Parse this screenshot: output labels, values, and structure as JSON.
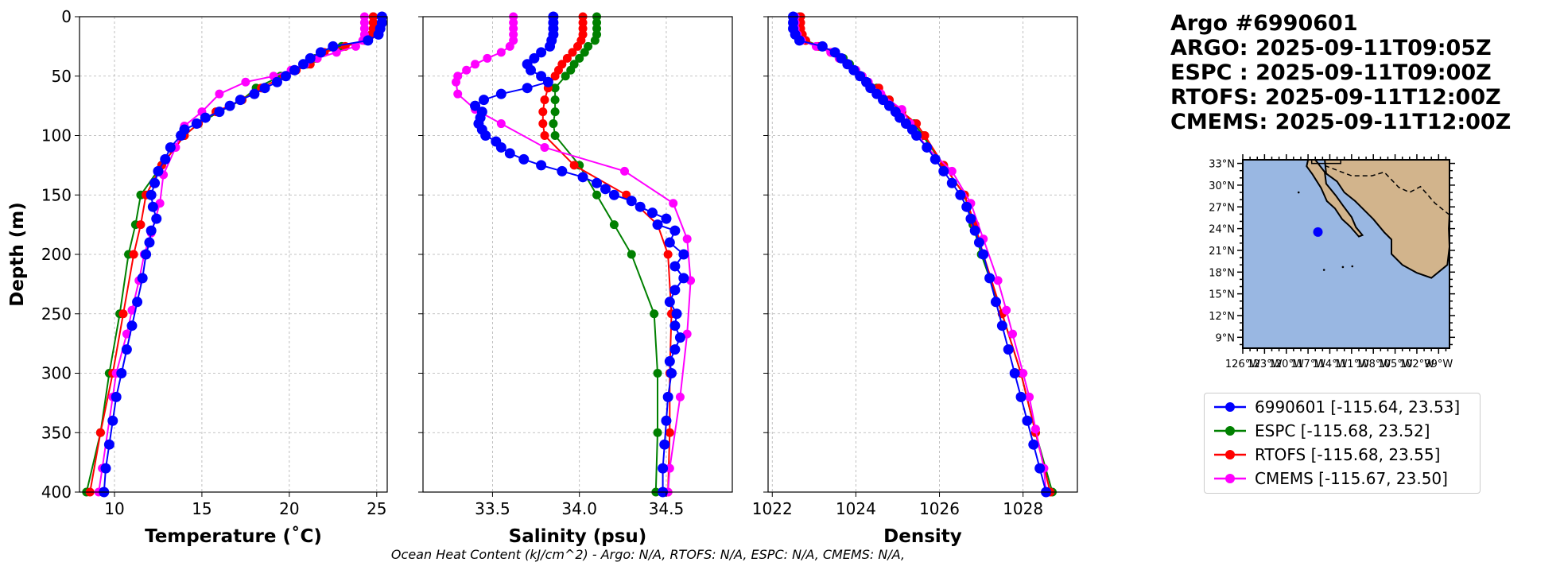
{
  "header": {
    "lines": [
      "Argo #6990601",
      "ARGO: 2025-09-11T09:05Z",
      "ESPC : 2025-09-11T09:00Z",
      "RTOFS: 2025-09-11T12:00Z",
      "CMEMS: 2025-09-11T12:00Z"
    ]
  },
  "footer": "Ocean Heat Content (kJ/cm^2) - Argo: N/A,  RTOFS: N/A,  ESPC: N/A,  CMEMS: N/A,",
  "colors": {
    "argo": "#0000ff",
    "espc": "#008000",
    "rtofs": "#ff0000",
    "cmems": "#ff00ff",
    "ocean": "#99b7e2",
    "land": "#d2b48c"
  },
  "legend": [
    {
      "label": "6990601 [-115.64, 23.53]",
      "color": "#0000ff"
    },
    {
      "label": "ESPC [-115.68, 23.52]",
      "color": "#008000"
    },
    {
      "label": "RTOFS [-115.68, 23.55]",
      "color": "#ff0000"
    },
    {
      "label": "CMEMS [-115.67, 23.50]",
      "color": "#ff00ff"
    }
  ],
  "map": {
    "lat_labels": [
      "33°N",
      "30°N",
      "27°N",
      "24°N",
      "21°N",
      "18°N",
      "15°N",
      "12°N",
      "9°N"
    ],
    "lon_labels": [
      "126°W",
      "123°W",
      "120°W",
      "117°W",
      "114°W",
      "111°W",
      "108°W",
      "105°W",
      "102°W",
      "99°W"
    ],
    "float_lon": -115.64,
    "float_lat": 23.53,
    "lon_range": [
      -126,
      -97.5
    ],
    "lat_range": [
      7.5,
      33.5
    ]
  },
  "chart_data": [
    {
      "type": "line",
      "xlabel": "Temperature (˚C)",
      "ylabel": "Depth (m)",
      "xlim": [
        8,
        25.6
      ],
      "ylim": [
        400,
        0
      ],
      "xticks": [
        10,
        15,
        20,
        25
      ],
      "yticks": [
        0,
        50,
        100,
        150,
        200,
        250,
        300,
        350,
        400
      ],
      "series": [
        {
          "name": "6990601",
          "depth": [
            0,
            5,
            10,
            15,
            20,
            25,
            30,
            35,
            40,
            45,
            50,
            55,
            60,
            65,
            70,
            75,
            80,
            85,
            90,
            95,
            100,
            110,
            120,
            130,
            140,
            150,
            160,
            170,
            180,
            190,
            200,
            220,
            240,
            260,
            280,
            300,
            320,
            340,
            360,
            380,
            400
          ],
          "values": [
            25.3,
            25.3,
            25.2,
            25.1,
            24.5,
            22.5,
            21.8,
            21.2,
            20.8,
            20.3,
            19.8,
            19.3,
            18.6,
            18.0,
            17.2,
            16.6,
            16.0,
            15.2,
            14.7,
            14.0,
            13.8,
            13.2,
            12.9,
            12.5,
            12.3,
            12.1,
            12.2,
            12.4,
            12.1,
            12.0,
            11.8,
            11.6,
            11.3,
            11.0,
            10.7,
            10.4,
            10.1,
            9.9,
            9.7,
            9.5,
            9.4
          ]
        },
        {
          "name": "ESPC",
          "depth": [
            0,
            5,
            10,
            15,
            20,
            25,
            30,
            35,
            40,
            50,
            60,
            70,
            80,
            90,
            100,
            125,
            150,
            175,
            200,
            250,
            300,
            350,
            400
          ],
          "values": [
            24.8,
            24.8,
            24.8,
            24.7,
            24.4,
            23.0,
            21.9,
            21.5,
            21.0,
            19.5,
            18.1,
            17.3,
            16.0,
            14.8,
            14.0,
            12.7,
            11.5,
            11.2,
            10.8,
            10.3,
            9.7,
            9.2,
            8.4
          ]
        },
        {
          "name": "RTOFS",
          "depth": [
            0,
            5,
            10,
            15,
            20,
            25,
            30,
            35,
            40,
            45,
            50,
            60,
            70,
            80,
            90,
            100,
            125,
            150,
            175,
            200,
            250,
            300,
            350,
            400
          ],
          "values": [
            24.8,
            24.8,
            24.8,
            24.7,
            24.3,
            23.2,
            22.0,
            21.6,
            21.2,
            20.4,
            19.7,
            18.4,
            17.3,
            15.8,
            14.8,
            14.0,
            12.7,
            11.8,
            11.5,
            11.1,
            10.5,
            9.9,
            9.2,
            8.6
          ]
        },
        {
          "name": "CMEMS",
          "depth": [
            0,
            5,
            10,
            15,
            20,
            25,
            30,
            35,
            40,
            45,
            50,
            55,
            65,
            80,
            92,
            110,
            133,
            157,
            182,
            200,
            222,
            247,
            267,
            300,
            320,
            380,
            400
          ],
          "values": [
            24.3,
            24.3,
            24.3,
            24.3,
            24.2,
            23.8,
            22.7,
            21.6,
            20.9,
            20.1,
            19.1,
            17.5,
            16.0,
            15.0,
            14.0,
            13.5,
            12.8,
            12.6,
            12.1,
            11.7,
            11.4,
            11.0,
            10.7,
            10.1,
            9.9,
            9.3,
            9.1
          ]
        }
      ]
    },
    {
      "type": "line",
      "xlabel": "Salinity (psu)",
      "ylabel": "",
      "xlim": [
        33.1,
        34.88
      ],
      "ylim": [
        400,
        0
      ],
      "xticks": [
        33.5,
        34.0,
        34.5
      ],
      "series": [
        {
          "name": "6990601",
          "depth": [
            0,
            5,
            10,
            15,
            20,
            25,
            30,
            35,
            40,
            45,
            50,
            55,
            60,
            65,
            70,
            75,
            80,
            85,
            90,
            95,
            100,
            105,
            110,
            115,
            120,
            125,
            130,
            135,
            140,
            145,
            150,
            155,
            160,
            165,
            170,
            175,
            180,
            190,
            200,
            210,
            220,
            230,
            240,
            250,
            260,
            270,
            280,
            290,
            300,
            320,
            340,
            360,
            380,
            400
          ],
          "values": [
            33.85,
            33.85,
            33.85,
            33.85,
            33.84,
            33.83,
            33.78,
            33.74,
            33.7,
            33.72,
            33.78,
            33.82,
            33.7,
            33.55,
            33.45,
            33.4,
            33.44,
            33.43,
            33.42,
            33.44,
            33.46,
            33.52,
            33.55,
            33.6,
            33.68,
            33.78,
            33.9,
            34.02,
            34.1,
            34.15,
            34.2,
            34.3,
            34.35,
            34.42,
            34.5,
            34.45,
            34.55,
            34.52,
            34.6,
            34.55,
            34.6,
            34.55,
            34.52,
            34.56,
            34.55,
            34.58,
            34.55,
            34.52,
            34.53,
            34.51,
            34.5,
            34.49,
            34.48,
            34.48
          ]
        },
        {
          "name": "ESPC",
          "depth": [
            0,
            5,
            10,
            15,
            20,
            25,
            30,
            35,
            40,
            45,
            50,
            60,
            70,
            80,
            90,
            100,
            125,
            150,
            175,
            200,
            250,
            300,
            350,
            400
          ],
          "values": [
            34.1,
            34.1,
            34.1,
            34.1,
            34.09,
            34.05,
            34.03,
            34.0,
            33.97,
            33.95,
            33.92,
            33.86,
            33.86,
            33.86,
            33.85,
            33.86,
            34.0,
            34.1,
            34.2,
            34.3,
            34.43,
            34.45,
            34.45,
            34.44
          ]
        },
        {
          "name": "RTOFS",
          "depth": [
            0,
            5,
            10,
            15,
            20,
            25,
            30,
            35,
            40,
            45,
            50,
            60,
            70,
            80,
            90,
            100,
            125,
            150,
            175,
            200,
            250,
            300,
            350,
            400
          ],
          "values": [
            34.02,
            34.02,
            34.02,
            34.02,
            34.01,
            33.99,
            33.96,
            33.93,
            33.9,
            33.88,
            33.86,
            33.82,
            33.8,
            33.79,
            33.79,
            33.8,
            33.97,
            34.27,
            34.45,
            34.51,
            34.53,
            34.52,
            34.52,
            34.51
          ]
        },
        {
          "name": "CMEMS",
          "depth": [
            0,
            5,
            10,
            15,
            20,
            25,
            30,
            35,
            40,
            45,
            50,
            55,
            65,
            78,
            90,
            110,
            130,
            157,
            187,
            222,
            267,
            320,
            380,
            400
          ],
          "values": [
            33.62,
            33.62,
            33.62,
            33.62,
            33.62,
            33.6,
            33.55,
            33.47,
            33.4,
            33.35,
            33.3,
            33.29,
            33.3,
            33.4,
            33.55,
            33.8,
            34.26,
            34.54,
            34.62,
            34.64,
            34.62,
            34.58,
            34.52,
            34.51
          ]
        }
      ]
    },
    {
      "type": "line",
      "xlabel": "Density",
      "ylabel": "",
      "xlim": [
        1021.9,
        1029.3
      ],
      "ylim": [
        400,
        0
      ],
      "xticks": [
        1022,
        1024,
        1026,
        1028
      ],
      "series": [
        {
          "name": "6990601",
          "depth": [
            0,
            5,
            10,
            15,
            20,
            25,
            30,
            35,
            40,
            45,
            50,
            55,
            60,
            65,
            70,
            75,
            80,
            85,
            90,
            95,
            100,
            110,
            120,
            130,
            140,
            150,
            160,
            170,
            180,
            190,
            200,
            220,
            240,
            260,
            280,
            300,
            320,
            340,
            360,
            380,
            400
          ],
          "values": [
            1022.5,
            1022.5,
            1022.5,
            1022.55,
            1022.65,
            1023.2,
            1023.5,
            1023.65,
            1023.8,
            1023.95,
            1024.1,
            1024.25,
            1024.35,
            1024.5,
            1024.65,
            1024.8,
            1024.95,
            1025.05,
            1025.2,
            1025.35,
            1025.45,
            1025.7,
            1025.9,
            1026.1,
            1026.3,
            1026.5,
            1026.65,
            1026.75,
            1026.85,
            1026.95,
            1027.05,
            1027.2,
            1027.35,
            1027.5,
            1027.65,
            1027.8,
            1027.95,
            1028.1,
            1028.25,
            1028.4,
            1028.55
          ]
        },
        {
          "name": "ESPC",
          "depth": [
            0,
            5,
            10,
            15,
            20,
            25,
            30,
            35,
            40,
            45,
            50,
            60,
            70,
            80,
            90,
            100,
            125,
            150,
            175,
            200,
            250,
            300,
            350,
            400
          ],
          "values": [
            1022.65,
            1022.65,
            1022.65,
            1022.7,
            1022.8,
            1023.15,
            1023.5,
            1023.7,
            1023.85,
            1024.0,
            1024.15,
            1024.5,
            1024.8,
            1025.1,
            1025.4,
            1025.6,
            1026.1,
            1026.6,
            1026.8,
            1027.0,
            1027.5,
            1027.95,
            1028.3,
            1028.7
          ]
        },
        {
          "name": "RTOFS",
          "depth": [
            0,
            5,
            10,
            15,
            20,
            25,
            30,
            35,
            40,
            45,
            50,
            60,
            70,
            80,
            90,
            100,
            125,
            150,
            175,
            200,
            250,
            300,
            350,
            400
          ],
          "values": [
            1022.68,
            1022.68,
            1022.68,
            1022.72,
            1022.8,
            1023.1,
            1023.4,
            1023.6,
            1023.8,
            1023.95,
            1024.1,
            1024.55,
            1024.8,
            1025.1,
            1025.45,
            1025.65,
            1026.1,
            1026.6,
            1026.85,
            1027.05,
            1027.5,
            1027.95,
            1028.3,
            1028.65
          ]
        },
        {
          "name": "CMEMS",
          "depth": [
            0,
            5,
            10,
            15,
            20,
            25,
            30,
            35,
            40,
            45,
            50,
            55,
            65,
            78,
            90,
            110,
            130,
            157,
            187,
            222,
            247,
            267,
            300,
            320,
            347,
            380,
            400
          ],
          "values": [
            1022.55,
            1022.55,
            1022.55,
            1022.6,
            1022.7,
            1023.05,
            1023.4,
            1023.6,
            1023.8,
            1024.0,
            1024.15,
            1024.3,
            1024.6,
            1025.1,
            1025.3,
            1025.7,
            1026.3,
            1026.75,
            1027.05,
            1027.4,
            1027.6,
            1027.75,
            1028.0,
            1028.15,
            1028.3,
            1028.5,
            1028.55
          ]
        }
      ]
    }
  ]
}
